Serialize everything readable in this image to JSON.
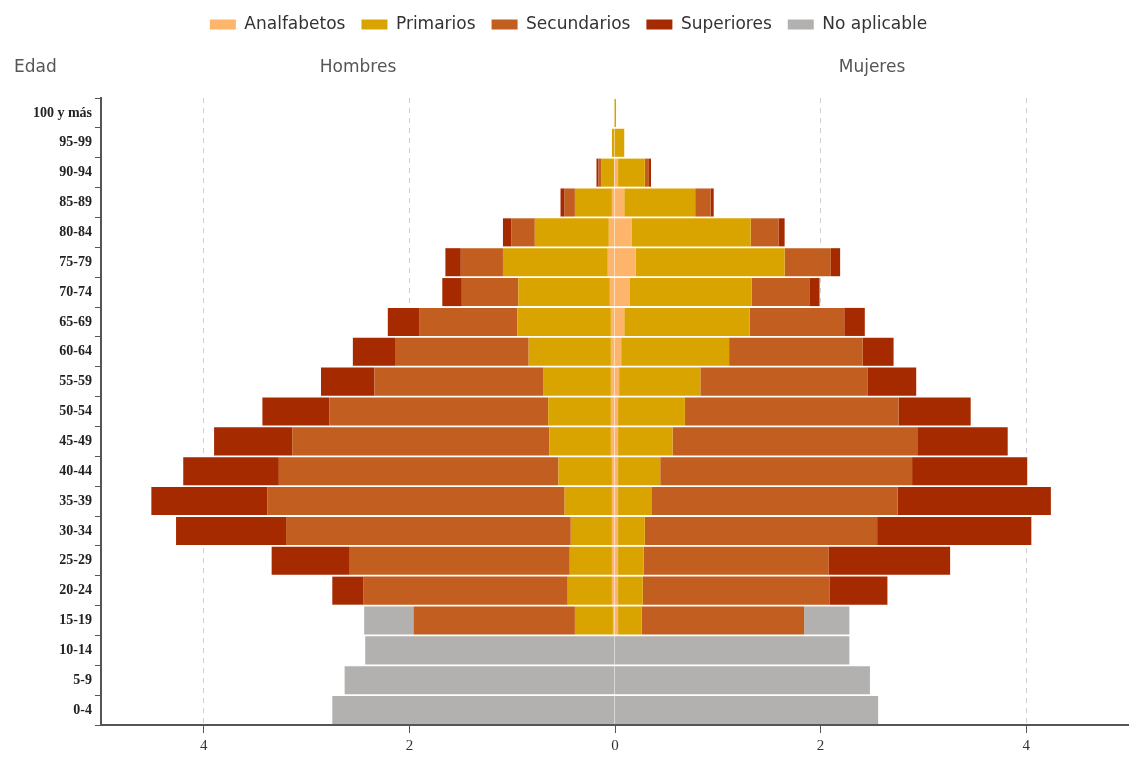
{
  "chart_data": [
    {
      "type": "bar",
      "orientation": "horizontal",
      "stacked": true,
      "title": "Hombres",
      "ylabel": "Edad",
      "categories": [
        "100 y más",
        "95-99",
        "90-94",
        "85-89",
        "80-84",
        "75-79",
        "70-74",
        "65-69",
        "60-64",
        "55-59",
        "50-54",
        "45-49",
        "40-44",
        "35-39",
        "30-34",
        "25-29",
        "20-24",
        "15-19",
        "10-14",
        "5-9",
        "0-4"
      ],
      "series": [
        {
          "color": "#fdb46b",
          "values": [
            0,
            0,
            0.01,
            0.03,
            0.06,
            0.07,
            0.05,
            0.04,
            0.04,
            0.04,
            0.04,
            0.04,
            0.03,
            0.03,
            0.03,
            0.03,
            0.03,
            0.02,
            null,
            null,
            null
          ]
        },
        {
          "color": "#daa400",
          "values": [
            0.01,
            0.03,
            0.12,
            0.36,
            0.72,
            1.02,
            0.89,
            0.91,
            0.8,
            0.66,
            0.61,
            0.6,
            0.52,
            0.46,
            0.4,
            0.41,
            0.43,
            0.37,
            null,
            null,
            null
          ]
        },
        {
          "color": "#c25e1f",
          "values": [
            0,
            0,
            0.03,
            0.1,
            0.23,
            0.41,
            0.55,
            0.95,
            1.3,
            1.64,
            2.13,
            2.5,
            2.72,
            2.89,
            2.77,
            2.14,
            1.99,
            1.57,
            null,
            null,
            null
          ]
        },
        {
          "color": "#a62a00",
          "values": [
            0,
            0,
            0.02,
            0.04,
            0.08,
            0.15,
            0.19,
            0.31,
            0.41,
            0.52,
            0.65,
            0.76,
            0.93,
            1.13,
            1.07,
            0.76,
            0.3,
            null,
            null,
            null,
            null
          ]
        },
        {
          "color": "#b3b1af",
          "values": [
            null,
            null,
            null,
            null,
            null,
            null,
            null,
            null,
            null,
            null,
            null,
            null,
            null,
            null,
            null,
            null,
            null,
            0.48,
            2.43,
            2.63,
            2.75
          ]
        }
      ],
      "xlim": [
        5,
        0
      ],
      "xticks": [
        4,
        2,
        0
      ],
      "grid": "x"
    },
    {
      "type": "bar",
      "orientation": "horizontal",
      "stacked": true,
      "title": "Mujeres",
      "series": [
        {
          "name": "Analfabetos",
          "color": "#fdb46b",
          "values": [
            0,
            0,
            0.03,
            0.09,
            0.16,
            0.2,
            0.14,
            0.09,
            0.06,
            0.04,
            0.03,
            0.03,
            0.03,
            0.03,
            0.03,
            0.03,
            0.03,
            0.03,
            null,
            null,
            null
          ]
        },
        {
          "name": "Primarios",
          "color": "#daa400",
          "values": [
            0.01,
            0.09,
            0.26,
            0.69,
            1.16,
            1.45,
            1.19,
            1.22,
            1.05,
            0.79,
            0.65,
            0.53,
            0.41,
            0.33,
            0.26,
            0.25,
            0.24,
            0.23,
            null,
            null,
            null
          ]
        },
        {
          "name": "Secundarios",
          "color": "#c25e1f",
          "values": [
            0,
            0,
            0.04,
            0.15,
            0.27,
            0.45,
            0.56,
            0.92,
            1.3,
            1.63,
            2.08,
            2.38,
            2.45,
            2.39,
            2.26,
            1.8,
            1.82,
            1.58,
            null,
            null,
            null
          ]
        },
        {
          "name": "Superiores",
          "color": "#a62a00",
          "values": [
            0,
            0,
            0.02,
            0.03,
            0.06,
            0.09,
            0.1,
            0.2,
            0.3,
            0.47,
            0.7,
            0.88,
            1.12,
            1.49,
            1.5,
            1.18,
            0.56,
            null,
            null,
            null,
            null
          ]
        },
        {
          "name": "No aplicable",
          "color": "#b3b1af",
          "values": [
            null,
            null,
            null,
            null,
            null,
            null,
            null,
            null,
            null,
            null,
            null,
            null,
            null,
            null,
            null,
            null,
            null,
            0.44,
            2.28,
            2.48,
            2.56
          ]
        }
      ],
      "xlim": [
        0,
        5
      ],
      "xticks": [
        2,
        4
      ],
      "grid": "x",
      "legend": "top",
      "tick_labels": "x"
    }
  ]
}
